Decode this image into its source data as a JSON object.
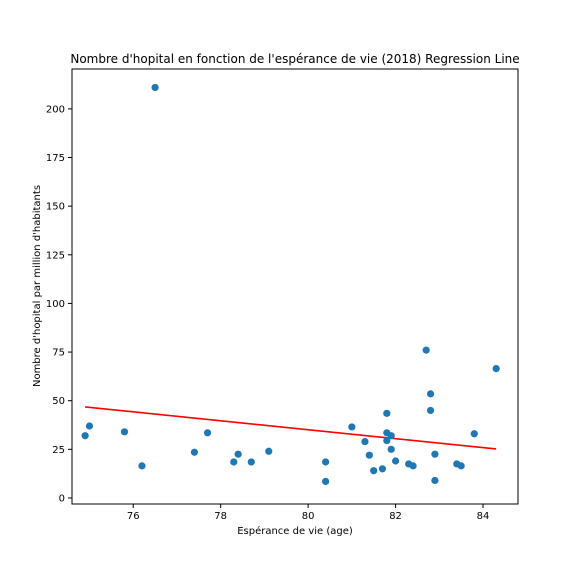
{
  "chart_data": {
    "type": "scatter",
    "title": "Nombre d'hopital en fonction de l'espérance de vie (2018) Regression Line",
    "xlabel": "Espérance de vie (age)",
    "ylabel": "Nombre d'hopital par million d'habitants",
    "xlim": [
      74.6,
      84.8
    ],
    "ylim": [
      -3.1,
      220.5
    ],
    "x_ticks": [
      76,
      78,
      80,
      82,
      84
    ],
    "y_ticks": [
      0,
      25,
      50,
      75,
      100,
      125,
      150,
      175,
      200
    ],
    "grid": false,
    "legend": "none",
    "point_color": "#1f77b4",
    "line_color": "#ff0000",
    "points": [
      {
        "x": 74.9,
        "y": 32
      },
      {
        "x": 75.0,
        "y": 37
      },
      {
        "x": 75.8,
        "y": 34
      },
      {
        "x": 76.2,
        "y": 16.5
      },
      {
        "x": 76.5,
        "y": 211
      },
      {
        "x": 77.4,
        "y": 23.5
      },
      {
        "x": 77.7,
        "y": 33.5
      },
      {
        "x": 78.3,
        "y": 18.5
      },
      {
        "x": 78.4,
        "y": 22.5
      },
      {
        "x": 78.7,
        "y": 18.5
      },
      {
        "x": 79.1,
        "y": 24
      },
      {
        "x": 80.4,
        "y": 18.5
      },
      {
        "x": 80.4,
        "y": 8.5
      },
      {
        "x": 81.0,
        "y": 36.5
      },
      {
        "x": 81.3,
        "y": 29
      },
      {
        "x": 81.4,
        "y": 22
      },
      {
        "x": 81.5,
        "y": 14
      },
      {
        "x": 81.7,
        "y": 15
      },
      {
        "x": 81.8,
        "y": 43.5
      },
      {
        "x": 81.8,
        "y": 33.5
      },
      {
        "x": 81.8,
        "y": 29.5
      },
      {
        "x": 81.9,
        "y": 32
      },
      {
        "x": 81.9,
        "y": 25
      },
      {
        "x": 82.0,
        "y": 19
      },
      {
        "x": 82.3,
        "y": 17.5
      },
      {
        "x": 82.4,
        "y": 16.5
      },
      {
        "x": 82.7,
        "y": 76
      },
      {
        "x": 82.8,
        "y": 53.5
      },
      {
        "x": 82.8,
        "y": 45
      },
      {
        "x": 82.9,
        "y": 22.5
      },
      {
        "x": 82.9,
        "y": 9
      },
      {
        "x": 83.4,
        "y": 17.5
      },
      {
        "x": 83.5,
        "y": 16.5
      },
      {
        "x": 83.8,
        "y": 33
      },
      {
        "x": 84.3,
        "y": 66.5
      }
    ],
    "regression_line": {
      "x": [
        74.9,
        84.3
      ],
      "y": [
        46.8,
        25.2
      ]
    }
  }
}
